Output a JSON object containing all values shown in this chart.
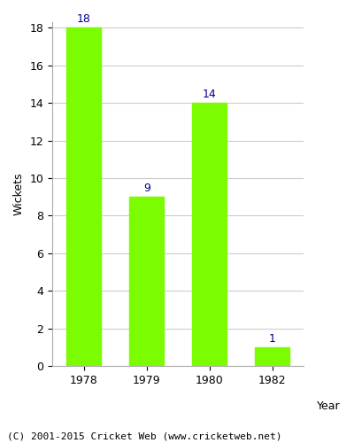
{
  "categories": [
    "1978",
    "1979",
    "1980",
    "1982"
  ],
  "values": [
    18,
    9,
    14,
    1
  ],
  "bar_color": "#7CFC00",
  "label_color": "#00008B",
  "ylabel": "Wickets",
  "xlabel": "Year",
  "ylim": [
    0,
    18
  ],
  "yticks": [
    0,
    2,
    4,
    6,
    8,
    10,
    12,
    14,
    16,
    18
  ],
  "footnote": "(C) 2001-2015 Cricket Web (www.cricketweb.net)",
  "bar_width": 0.55,
  "label_fontsize": 9,
  "axis_label_fontsize": 9,
  "tick_fontsize": 9,
  "footnote_fontsize": 8,
  "background_color": "#ffffff",
  "grid_color": "#cccccc"
}
